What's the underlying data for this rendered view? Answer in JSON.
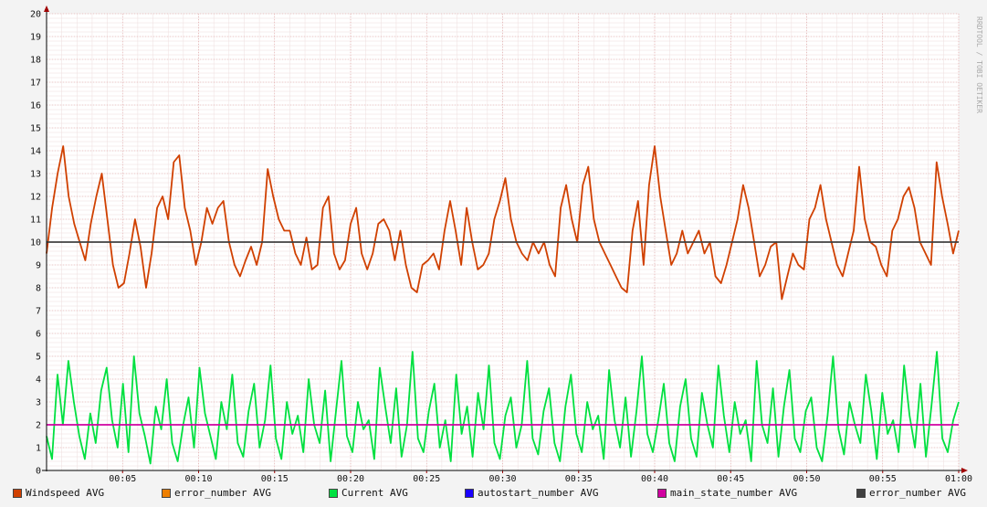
{
  "watermark": "RRDTOOL / TOBI OETIKER",
  "chart_data": {
    "type": "line",
    "grid": true,
    "ylim": [
      0,
      20
    ],
    "y_ticks": [
      0,
      1,
      2,
      3,
      4,
      5,
      6,
      7,
      8,
      9,
      10,
      11,
      12,
      13,
      14,
      15,
      16,
      17,
      18,
      19,
      20
    ],
    "x_range_minutes": [
      0,
      60
    ],
    "x_ticks": [
      {
        "label": "00:05",
        "minute": 5
      },
      {
        "label": "00:10",
        "minute": 10
      },
      {
        "label": "00:15",
        "minute": 15
      },
      {
        "label": "00:20",
        "minute": 20
      },
      {
        "label": "00:25",
        "minute": 25
      },
      {
        "label": "00:30",
        "minute": 30
      },
      {
        "label": "00:35",
        "minute": 35
      },
      {
        "label": "00:40",
        "minute": 40
      },
      {
        "label": "00:45",
        "minute": 45
      },
      {
        "label": "00:50",
        "minute": 50
      },
      {
        "label": "00:55",
        "minute": 55
      },
      {
        "label": "01:00",
        "minute": 60
      }
    ],
    "series": [
      {
        "name": "Windspeed AVG",
        "color": "#d04000",
        "values": [
          9.5,
          11.5,
          13.0,
          14.2,
          12.0,
          10.8,
          10.0,
          9.2,
          10.8,
          12.0,
          13.0,
          11.0,
          9.0,
          8.0,
          8.2,
          9.5,
          11.0,
          9.8,
          8.0,
          9.5,
          11.5,
          12.0,
          11.0,
          13.5,
          13.8,
          11.5,
          10.5,
          9.0,
          10.0,
          11.5,
          10.8,
          11.5,
          11.8,
          10.0,
          9.0,
          8.5,
          9.2,
          9.8,
          9.0,
          10.0,
          13.2,
          12.0,
          11.0,
          10.5,
          10.5,
          9.5,
          9.0,
          10.2,
          8.8,
          9.0,
          11.5,
          12.0,
          9.5,
          8.8,
          9.2,
          10.8,
          11.5,
          9.5,
          8.8,
          9.5,
          10.8,
          11.0,
          10.5,
          9.2,
          10.5,
          9.0,
          8.0,
          7.8,
          9.0,
          9.2,
          9.5,
          8.8,
          10.5,
          11.8,
          10.5,
          9.0,
          11.5,
          10.0,
          8.8,
          9.0,
          9.5,
          11.0,
          11.8,
          12.8,
          11.0,
          10.0,
          9.5,
          9.2,
          10.0,
          9.5,
          10.0,
          9.0,
          8.5,
          11.5,
          12.5,
          11.0,
          10.0,
          12.5,
          13.3,
          11.0,
          10.0,
          9.5,
          9.0,
          8.5,
          8.0,
          7.8,
          10.5,
          11.8,
          9.0,
          12.5,
          14.2,
          12.0,
          10.5,
          9.0,
          9.5,
          10.5,
          9.5,
          10.0,
          10.5,
          9.5,
          10.0,
          8.5,
          8.2,
          9.0,
          10.0,
          11.0,
          12.5,
          11.5,
          10.0,
          8.5,
          9.0,
          9.8,
          10.0,
          7.5,
          8.5,
          9.5,
          9.0,
          8.8,
          11.0,
          11.5,
          12.5,
          11.0,
          10.0,
          9.0,
          8.5,
          9.5,
          10.5,
          13.3,
          11.0,
          10.0,
          9.8,
          9.0,
          8.5,
          10.5,
          11.0,
          12.0,
          12.4,
          11.5,
          10.0,
          9.5,
          9.0,
          13.5,
          12.0,
          10.8,
          9.5,
          10.5
        ]
      },
      {
        "name": "error_number AVG",
        "color": "#ee7f00",
        "values": []
      },
      {
        "name": "Current AVG",
        "color": "#00e040",
        "values": [
          1.5,
          0.5,
          4.2,
          2.0,
          4.8,
          3.0,
          1.5,
          0.5,
          2.5,
          1.2,
          3.5,
          4.5,
          2.2,
          1.0,
          3.8,
          0.8,
          5.0,
          2.5,
          1.5,
          0.3,
          2.8,
          1.8,
          4.0,
          1.2,
          0.4,
          2.0,
          3.2,
          1.0,
          4.5,
          2.5,
          1.5,
          0.5,
          3.0,
          1.8,
          4.2,
          1.2,
          0.6,
          2.6,
          3.8,
          1.0,
          2.2,
          4.6,
          1.4,
          0.5,
          3.0,
          1.6,
          2.4,
          0.8,
          4.0,
          2.0,
          1.2,
          3.5,
          0.4,
          2.6,
          4.8,
          1.5,
          0.8,
          3.0,
          1.8,
          2.2,
          0.5,
          4.5,
          2.8,
          1.2,
          3.6,
          0.6,
          2.0,
          5.2,
          1.4,
          0.8,
          2.6,
          3.8,
          1.0,
          2.2,
          0.4,
          4.2,
          1.6,
          2.8,
          0.6,
          3.4,
          1.8,
          4.6,
          1.2,
          0.5,
          2.4,
          3.2,
          1.0,
          2.0,
          4.8,
          1.4,
          0.7,
          2.6,
          3.6,
          1.2,
          0.4,
          2.8,
          4.2,
          1.6,
          0.8,
          3.0,
          1.8,
          2.4,
          0.5,
          4.4,
          2.2,
          1.0,
          3.2,
          0.6,
          2.6,
          5.0,
          1.6,
          0.8,
          2.2,
          3.8,
          1.2,
          0.4,
          2.8,
          4.0,
          1.4,
          0.6,
          3.4,
          2.0,
          1.0,
          4.6,
          2.4,
          0.8,
          3.0,
          1.6,
          2.2,
          0.4,
          4.8,
          2.0,
          1.2,
          3.6,
          0.6,
          2.8,
          4.4,
          1.4,
          0.8,
          2.6,
          3.2,
          1.0,
          0.4,
          2.4,
          5.0,
          1.8,
          0.7,
          3.0,
          2.0,
          1.2,
          4.2,
          2.6,
          0.5,
          3.4,
          1.6,
          2.2,
          0.8,
          4.6,
          2.4,
          1.0,
          3.8,
          0.6,
          2.8,
          5.2,
          1.4,
          0.8,
          2.2,
          3.0
        ]
      },
      {
        "name": "autostart_number AVG",
        "color": "#1a00ff",
        "values": []
      },
      {
        "name": "main_state_number AVG",
        "color": "#d000a0",
        "values": [
          2,
          2,
          2,
          2,
          2,
          2,
          2,
          2,
          2,
          2,
          2,
          2,
          2,
          2,
          2,
          2,
          2,
          2,
          2,
          2,
          2,
          2,
          2,
          2,
          2,
          2,
          2,
          2,
          2,
          2,
          2,
          2,
          2,
          2,
          2,
          2,
          2,
          2,
          2,
          2,
          2,
          2,
          2,
          2,
          2,
          2,
          2,
          2,
          2,
          2,
          2,
          2,
          2,
          2,
          2,
          2,
          2,
          2,
          2,
          2,
          2
        ]
      },
      {
        "name": "error_number AVG",
        "color": "#404040",
        "values": [
          10,
          10,
          10,
          10,
          10,
          10,
          10,
          10,
          10,
          10,
          10,
          10,
          10,
          10,
          10,
          10,
          10,
          10,
          10,
          10,
          10,
          10,
          10,
          10,
          10,
          10,
          10,
          10,
          10,
          10,
          10,
          10,
          10,
          10,
          10,
          10,
          10,
          10,
          10,
          10,
          10,
          10,
          10,
          10,
          10,
          10,
          10,
          10,
          10,
          10,
          10,
          10,
          10,
          10,
          10,
          10,
          10,
          10,
          10,
          10,
          10
        ]
      }
    ]
  }
}
